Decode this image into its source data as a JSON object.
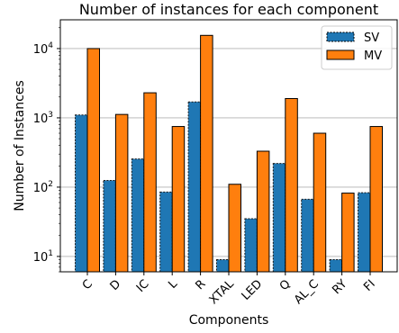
{
  "chart_data": {
    "type": "bar",
    "title": "Number of instances for each component",
    "xlabel": "Components",
    "ylabel": "Number of Instances",
    "yscale": "log",
    "ylim": [
      6,
      26000
    ],
    "grid": "y-major",
    "legend_position": "top-right",
    "categories": [
      "C",
      "D",
      "IC",
      "L",
      "R",
      "XTAL",
      "LED",
      "Q",
      "AL_C",
      "RY",
      "FI"
    ],
    "series": [
      {
        "name": "SV",
        "color": "#1f77b4",
        "values": [
          1100,
          125,
          255,
          85,
          1700,
          9,
          35,
          220,
          67,
          9,
          83
        ]
      },
      {
        "name": "MV",
        "color": "#ff7f0e",
        "values": [
          10000,
          1120,
          2300,
          750,
          15500,
          110,
          330,
          1900,
          600,
          82,
          750
        ]
      }
    ],
    "y_ticks": [
      {
        "value": 10,
        "base": "10",
        "exp": "1"
      },
      {
        "value": 100,
        "base": "10",
        "exp": "2"
      },
      {
        "value": 1000,
        "base": "10",
        "exp": "3"
      },
      {
        "value": 10000,
        "base": "10",
        "exp": "4"
      }
    ]
  }
}
